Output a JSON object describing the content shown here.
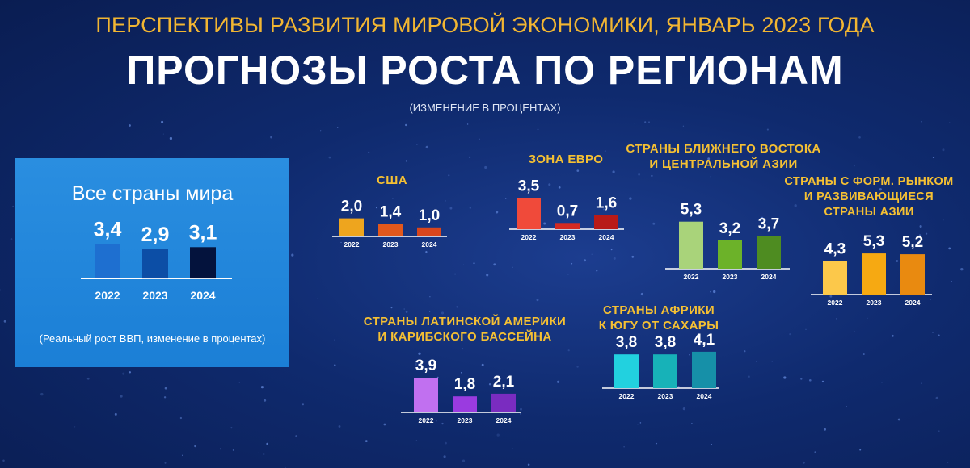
{
  "header": {
    "subtitle": "ПЕРСПЕКТИВЫ РАЗВИТИЯ МИРОВОЙ ЭКОНОМИКИ, ЯНВАРЬ 2023 ГОДА",
    "title": "ПРОГНОЗЫ РОСТА ПО РЕГИОНАМ",
    "note": "(ИЗМЕНЕНИЕ В ПРОЦЕНТАХ)"
  },
  "world_panel": {
    "title": "Все страны мира",
    "note": "(Реальный рост ВВП, изменение в процентах)"
  },
  "colors": {
    "subtitle": "#f2b632",
    "region_label": "#f5c033",
    "background": "#0f2a6e"
  },
  "chart_data": [
    {
      "id": "world",
      "type": "bar",
      "title": "Все страны мира",
      "categories": [
        "2022",
        "2023",
        "2024"
      ],
      "values": [
        3.4,
        2.9,
        3.1
      ],
      "value_labels": [
        "3,4",
        "2,9",
        "3,1"
      ],
      "colors": [
        "#1e6fd0",
        "#0c4ea6",
        "#04133d"
      ]
    },
    {
      "id": "usa",
      "type": "bar",
      "title": "США",
      "categories": [
        "2022",
        "2023",
        "2024"
      ],
      "values": [
        2.0,
        1.4,
        1.0
      ],
      "value_labels": [
        "2,0",
        "1,4",
        "1,0"
      ],
      "colors": [
        "#eea51e",
        "#e2581c",
        "#d9461d"
      ]
    },
    {
      "id": "euro",
      "type": "bar",
      "title": "ЗОНА ЕВРО",
      "categories": [
        "2022",
        "2023",
        "2024"
      ],
      "values": [
        3.5,
        0.7,
        1.6
      ],
      "value_labels": [
        "3,5",
        "0,7",
        "1,6"
      ],
      "colors": [
        "#f04a3a",
        "#d42a22",
        "#b81a18"
      ]
    },
    {
      "id": "mideast",
      "type": "bar",
      "title": "СТРАНЫ БЛИЖНЕГО ВОСТОКА И ЦЕНТРАЛЬНОЙ АЗИИ",
      "categories": [
        "2022",
        "2023",
        "2024"
      ],
      "values": [
        5.3,
        3.2,
        3.7
      ],
      "value_labels": [
        "5,3",
        "3,2",
        "3,7"
      ],
      "colors": [
        "#a9d37a",
        "#6cb229",
        "#4e8c21"
      ]
    },
    {
      "id": "asia",
      "type": "bar",
      "title": "СТРАНЫ С ФОРМ. РЫНКОМ И РАЗВИВАЮЩИЕСЯ СТРАНЫ АЗИИ",
      "categories": [
        "2022",
        "2023",
        "2024"
      ],
      "values": [
        4.3,
        5.3,
        5.2
      ],
      "value_labels": [
        "4,3",
        "5,3",
        "5,2"
      ],
      "colors": [
        "#fcc84a",
        "#f6a912",
        "#e98a10"
      ]
    },
    {
      "id": "latam",
      "type": "bar",
      "title": "СТРАНЫ ЛАТИНСКОЙ АМЕРИКИ И КАРИБСКОГО БАССЕЙНА",
      "categories": [
        "2022",
        "2023",
        "2024"
      ],
      "values": [
        3.9,
        1.8,
        2.1
      ],
      "value_labels": [
        "3,9",
        "1,8",
        "2,1"
      ],
      "colors": [
        "#c170f0",
        "#9a3be0",
        "#7a2cc0"
      ]
    },
    {
      "id": "africa",
      "type": "bar",
      "title": "СТРАНЫ АФРИКИ К ЮГУ ОТ САХАРЫ",
      "categories": [
        "2022",
        "2023",
        "2024"
      ],
      "values": [
        3.8,
        3.8,
        4.1
      ],
      "value_labels": [
        "3,8",
        "3,8",
        "4,1"
      ],
      "colors": [
        "#22d1df",
        "#17b2b8",
        "#1690a8"
      ]
    }
  ],
  "region_labels": {
    "usa": "США",
    "euro": "ЗОНА ЕВРО",
    "mideast_l1": "СТРАНЫ БЛИЖНЕГО ВОСТОКА",
    "mideast_l2": "И ЦЕНТРАЛЬНОЙ АЗИИ",
    "asia_l1": "СТРАНЫ С ФОРМ. РЫНКОМ",
    "asia_l2": "И РАЗВИВАЮЩИЕСЯ",
    "asia_l3": "СТРАНЫ АЗИИ",
    "latam_l1": "СТРАНЫ ЛАТИНСКОЙ АМЕРИКИ",
    "latam_l2": "И КАРИБСКОГО БАССЕЙНА",
    "africa_l1": "СТРАНЫ АФРИКИ",
    "africa_l2": "К ЮГУ ОТ САХАРЫ"
  }
}
